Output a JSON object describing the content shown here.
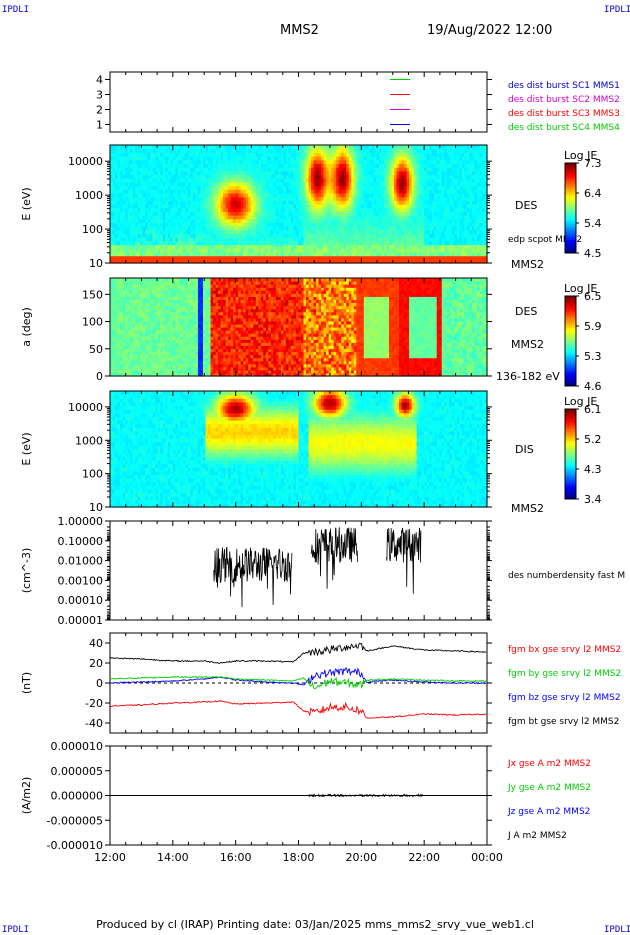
{
  "header": {
    "corner_tag": "IPDLI",
    "spacecraft": "MMS2",
    "datetime": "19/Aug/2022 12:00"
  },
  "footer": {
    "text": "Produced by cl (IRAP)   Printing date: 03/Jan/2025   mms_mms2_srvy_vue_web1.cl"
  },
  "colors": {
    "red": "#ff0000",
    "green": "#00cc00",
    "blue": "#0000ff",
    "magenta": "#cc00cc",
    "black": "#000000"
  },
  "chart_data": [
    {
      "type": "line",
      "panel": "spacecraft-burst",
      "ylabel": "",
      "yticks": [
        "1",
        "2",
        "3",
        "4"
      ],
      "ylim": [
        0.5,
        4.5
      ],
      "legend": [
        {
          "name": "des dist burst SC1 MMS1",
          "color": "#0000cc",
          "y": 1
        },
        {
          "name": "des dist burst SC2 MMS2",
          "color": "#cc00cc",
          "y": 2
        },
        {
          "name": "des dist burst SC3 MMS3",
          "color": "#ff0000",
          "y": 3
        },
        {
          "name": "des dist burst SC4 MMS4",
          "color": "#00cc00",
          "y": 4
        }
      ]
    },
    {
      "type": "heatmap",
      "panel": "des-energy",
      "ylabel": "E (eV)",
      "yticks": [
        "10",
        "100",
        "1000",
        "10000"
      ],
      "ylog": true,
      "ylim": [
        10,
        30000
      ],
      "species": "DES",
      "extra_labels": [
        "edp scpot MMS2",
        "MMS2"
      ],
      "colorbar": {
        "title": "Log JE",
        "ticks": [
          "7.3",
          "6.4",
          "5.4",
          "4.5"
        ],
        "range": [
          4.5,
          7.3
        ]
      }
    },
    {
      "type": "heatmap",
      "panel": "des-pitch",
      "ylabel": "a (deg)",
      "yticks": [
        "0",
        "50",
        "100",
        "150"
      ],
      "ylim": [
        0,
        180
      ],
      "species": "DES",
      "extra_labels": [
        "MMS2",
        "136-182 eV"
      ],
      "colorbar": {
        "title": "Log JE",
        "ticks": [
          "6.5",
          "5.9",
          "5.3",
          "4.6"
        ],
        "range": [
          4.6,
          6.5
        ]
      }
    },
    {
      "type": "heatmap",
      "panel": "dis-energy",
      "ylabel": "E (eV)",
      "yticks": [
        "10",
        "100",
        "1000",
        "10000"
      ],
      "ylog": true,
      "ylim": [
        10,
        30000
      ],
      "species": "DIS",
      "extra_labels": [
        "MMS2"
      ],
      "colorbar": {
        "title": "Log JE",
        "ticks": [
          "6.1",
          "5.2",
          "4.3",
          "3.4"
        ],
        "range": [
          3.4,
          6.1
        ]
      }
    },
    {
      "type": "scatter",
      "panel": "density",
      "ylabel": "(cm^-3)",
      "yticks": [
        "1.00000",
        "0.10000",
        "0.01000",
        "0.00100",
        "0.00010",
        "0.00001"
      ],
      "ylog": true,
      "ylim": [
        1e-05,
        1
      ],
      "series": [
        {
          "name": "des numberdensity fast M",
          "color": "#000000"
        }
      ]
    },
    {
      "type": "line",
      "panel": "magnetic-field",
      "ylabel": "(nT)",
      "yticks": [
        "40",
        "20",
        "0",
        "-20",
        "-40"
      ],
      "ylim": [
        -50,
        50
      ],
      "x": [
        "12:00",
        "13:00",
        "14:00",
        "15:00",
        "15:30",
        "16:00",
        "17:00",
        "17:50",
        "18:10",
        "18:30",
        "19:00",
        "19:30",
        "20:00",
        "20:10",
        "21:00",
        "22:00",
        "23:00",
        "23:59"
      ],
      "series": [
        {
          "name": "fgm bt gse srvy l2 MMS2",
          "color": "#000000",
          "values": [
            25,
            24,
            22,
            22,
            20,
            22,
            22,
            21,
            30,
            31,
            33,
            36,
            38,
            32,
            37,
            33,
            32,
            31
          ]
        },
        {
          "name": "fgm bx gse srvy l2 MMS2",
          "color": "#ff0000",
          "values": [
            -23,
            -22,
            -20,
            -19,
            -18,
            -21,
            -20,
            -19,
            -28,
            -30,
            -24,
            -24,
            -28,
            -35,
            -34,
            -31,
            -32,
            -31
          ]
        },
        {
          "name": "fgm by gse srvy l2 MMS2",
          "color": "#00cc00",
          "values": [
            4,
            5,
            6,
            6,
            6,
            4,
            3,
            2,
            5,
            -5,
            2,
            0,
            -2,
            3,
            4,
            3,
            2,
            2
          ]
        },
        {
          "name": "fgm bz gse srvy l2 MMS2",
          "color": "#0000ff",
          "values": [
            0,
            1,
            2,
            4,
            6,
            3,
            1,
            0,
            -2,
            8,
            10,
            12,
            10,
            1,
            3,
            1,
            0,
            0
          ]
        }
      ]
    },
    {
      "type": "line",
      "panel": "current-density",
      "ylabel": "(A/m2)",
      "yticks": [
        "0.000010",
        "0.000005",
        "0.000000",
        "-0.000005",
        "-0.000010"
      ],
      "ylim": [
        -1e-05,
        1e-05
      ],
      "series": [
        {
          "name": "Jx gse A m2 MMS2",
          "color": "#ff0000"
        },
        {
          "name": "Jy gse A m2 MMS2",
          "color": "#00cc00"
        },
        {
          "name": "Jz gse A m2 MMS2",
          "color": "#0000ff"
        },
        {
          "name": "J A m2 MMS2",
          "color": "#000000"
        }
      ]
    }
  ],
  "xaxis": {
    "ticks": [
      "12:00",
      "14:00",
      "16:00",
      "18:00",
      "20:00",
      "22:00",
      "00:00"
    ]
  }
}
